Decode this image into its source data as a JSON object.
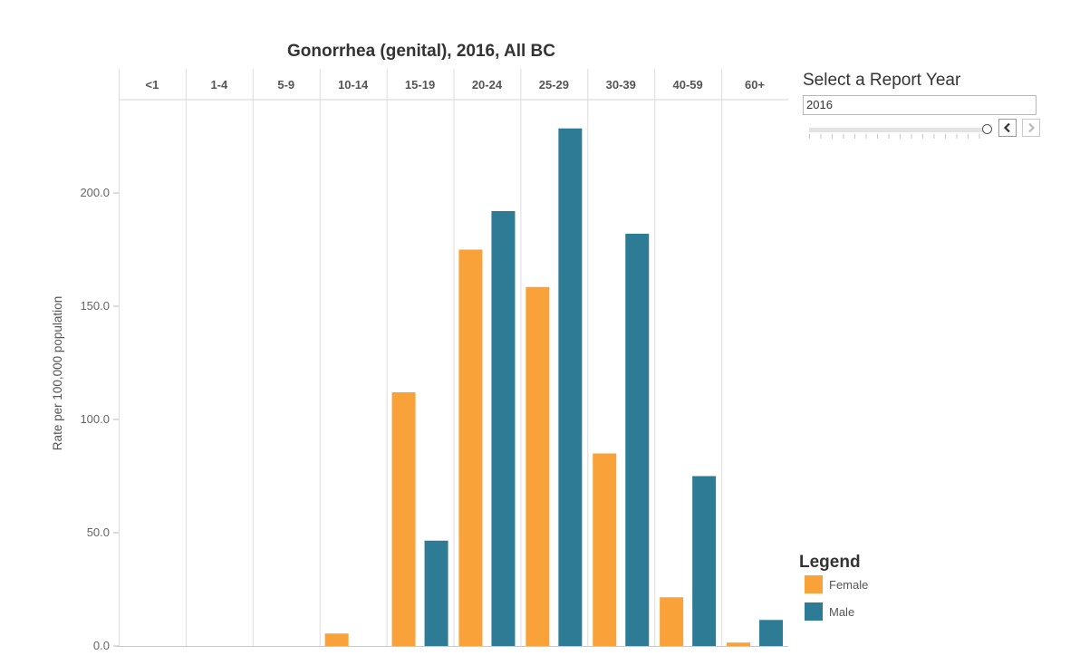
{
  "chart_data": {
    "type": "bar",
    "title": "Gonorrhea (genital), 2016, All BC",
    "ylabel": "Rate per 100,000 population",
    "xlabel": "",
    "categories": [
      "<1",
      "1-4",
      "5-9",
      "10-14",
      "15-19",
      "20-24",
      "25-29",
      "30-39",
      "40-59",
      "60+"
    ],
    "series": [
      {
        "name": "Female",
        "color": "#f9a23a",
        "values": [
          0,
          0,
          0,
          5.5,
          112.0,
          175.0,
          158.5,
          85.0,
          21.5,
          1.5
        ]
      },
      {
        "name": "Male",
        "color": "#2e7b96",
        "values": [
          0,
          0,
          0,
          0,
          46.5,
          192.0,
          228.5,
          182.0,
          75.0,
          11.5
        ]
      }
    ],
    "yticks": [
      0,
      50,
      100,
      150,
      200
    ],
    "ytick_labels": [
      "0.0",
      "50.0",
      "100.0",
      "150.0",
      "200.0"
    ],
    "ylim": [
      0,
      240
    ],
    "grid": false,
    "legend_position": "bottom-right"
  },
  "filter": {
    "label": "Select a Report Year",
    "value": "2016",
    "prev_icon": "chevron-left-icon",
    "next_icon": "chevron-right-icon"
  },
  "legend": {
    "title": "Legend"
  }
}
